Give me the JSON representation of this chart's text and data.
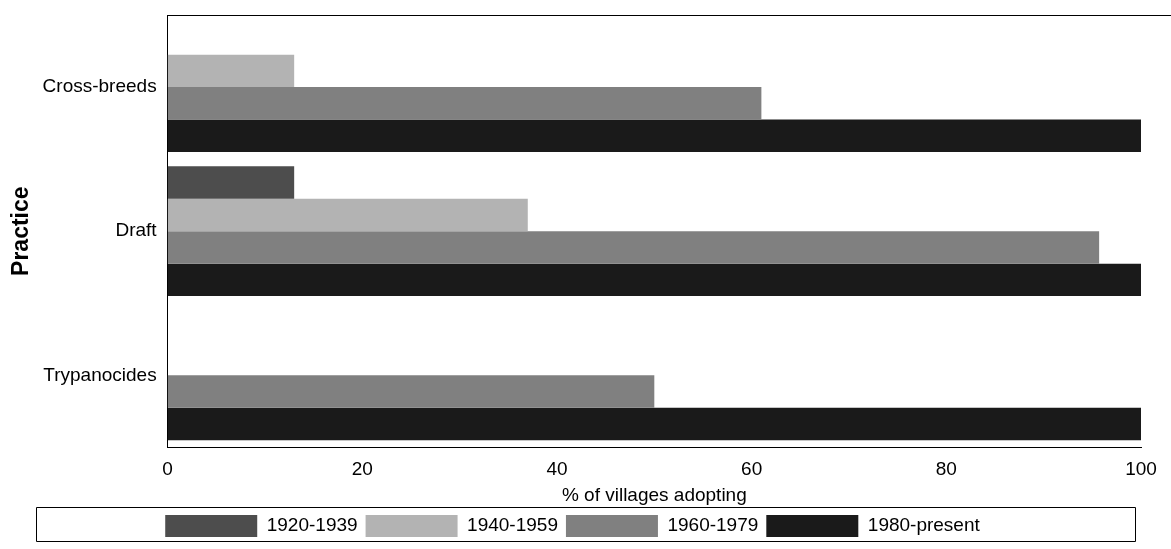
{
  "chart_data": {
    "type": "bar",
    "orientation": "horizontal",
    "xlabel": "% of villages adopting",
    "ylabel": "Practice",
    "categories": [
      "Cross-breeds",
      "Draft",
      "Trypanocides"
    ],
    "series": [
      {
        "name": "1920-1939",
        "color": "#4d4d4d",
        "values": [
          0,
          13,
          0
        ]
      },
      {
        "name": "1940-1959",
        "color": "#b3b3b3",
        "values": [
          13,
          37,
          0
        ]
      },
      {
        "name": "1960-1979",
        "color": "#808080",
        "values": [
          61,
          95.7,
          50
        ]
      },
      {
        "name": "1980-present",
        "color": "#1a1a1a",
        "values": [
          100,
          100,
          100
        ]
      }
    ],
    "xlim": [
      0,
      100
    ],
    "xticks": [
      0,
      20,
      40,
      60,
      80,
      100
    ],
    "grid": false,
    "legend": "bottom"
  }
}
